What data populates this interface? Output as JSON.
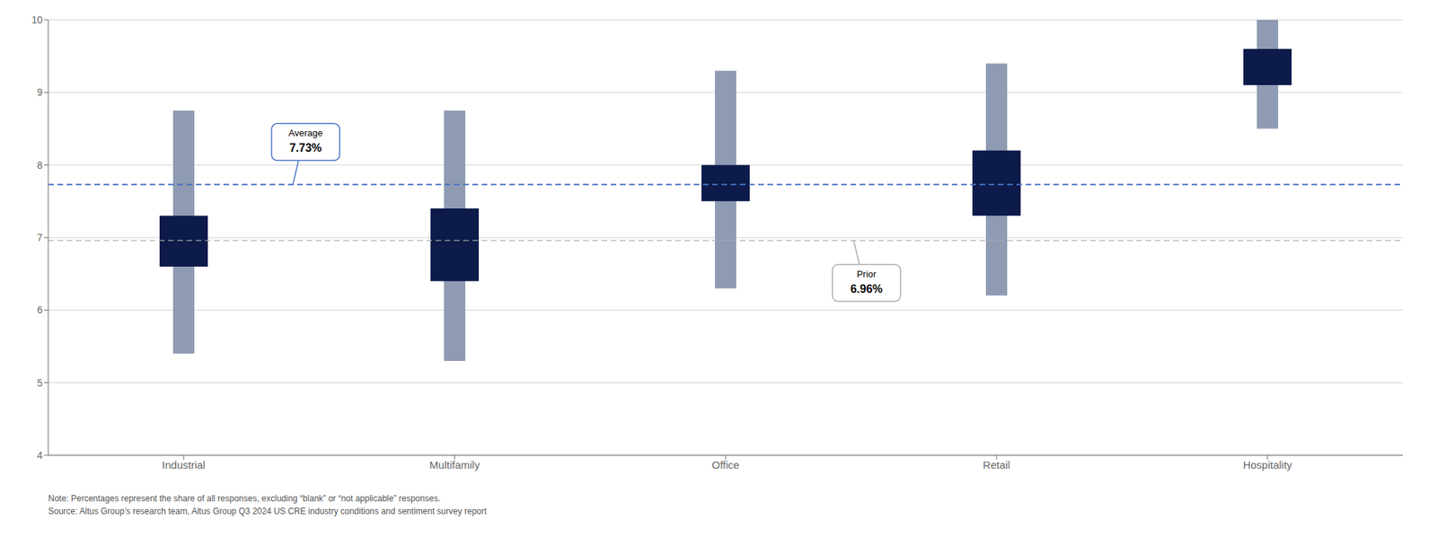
{
  "chart_data": {
    "type": "floating_bar",
    "categories": [
      "Industrial",
      "Multifamily",
      "Office",
      "Retail",
      "Hospitality"
    ],
    "series": [
      {
        "color": "#8F9BB3",
        "low": [
          5.4,
          5.3,
          6.3,
          6.2,
          8.5
        ],
        "high": [
          8.75,
          8.75,
          9.3,
          9.4,
          10.0
        ]
      },
      {
        "color": "#0D1B4B",
        "low": [
          6.6,
          6.4,
          7.5,
          7.3,
          9.1
        ],
        "high": [
          7.3,
          7.4,
          8.0,
          8.2,
          9.6
        ]
      }
    ],
    "reference_lines": [
      {
        "value": 7.73,
        "color": "#4472C4",
        "line_style": "dashed",
        "label": "Average",
        "value_label": "7.73%"
      },
      {
        "value": 6.96,
        "color": "#AAAAAA",
        "line_style": "dashed",
        "label": "Prior",
        "value_label": "6.96%"
      }
    ],
    "ylim": [
      4,
      10
    ],
    "yticks": [
      4,
      5,
      6,
      7,
      8,
      9,
      10
    ],
    "grid": true,
    "footnotes": [
      "Note: Percentages represent the share of all responses, excluding “blank” or “not applicable” responses.",
      "Source: Altus Group’s research team, Altus Group Q3 2024 US CRE industry conditions and sentiment survey report"
    ]
  }
}
